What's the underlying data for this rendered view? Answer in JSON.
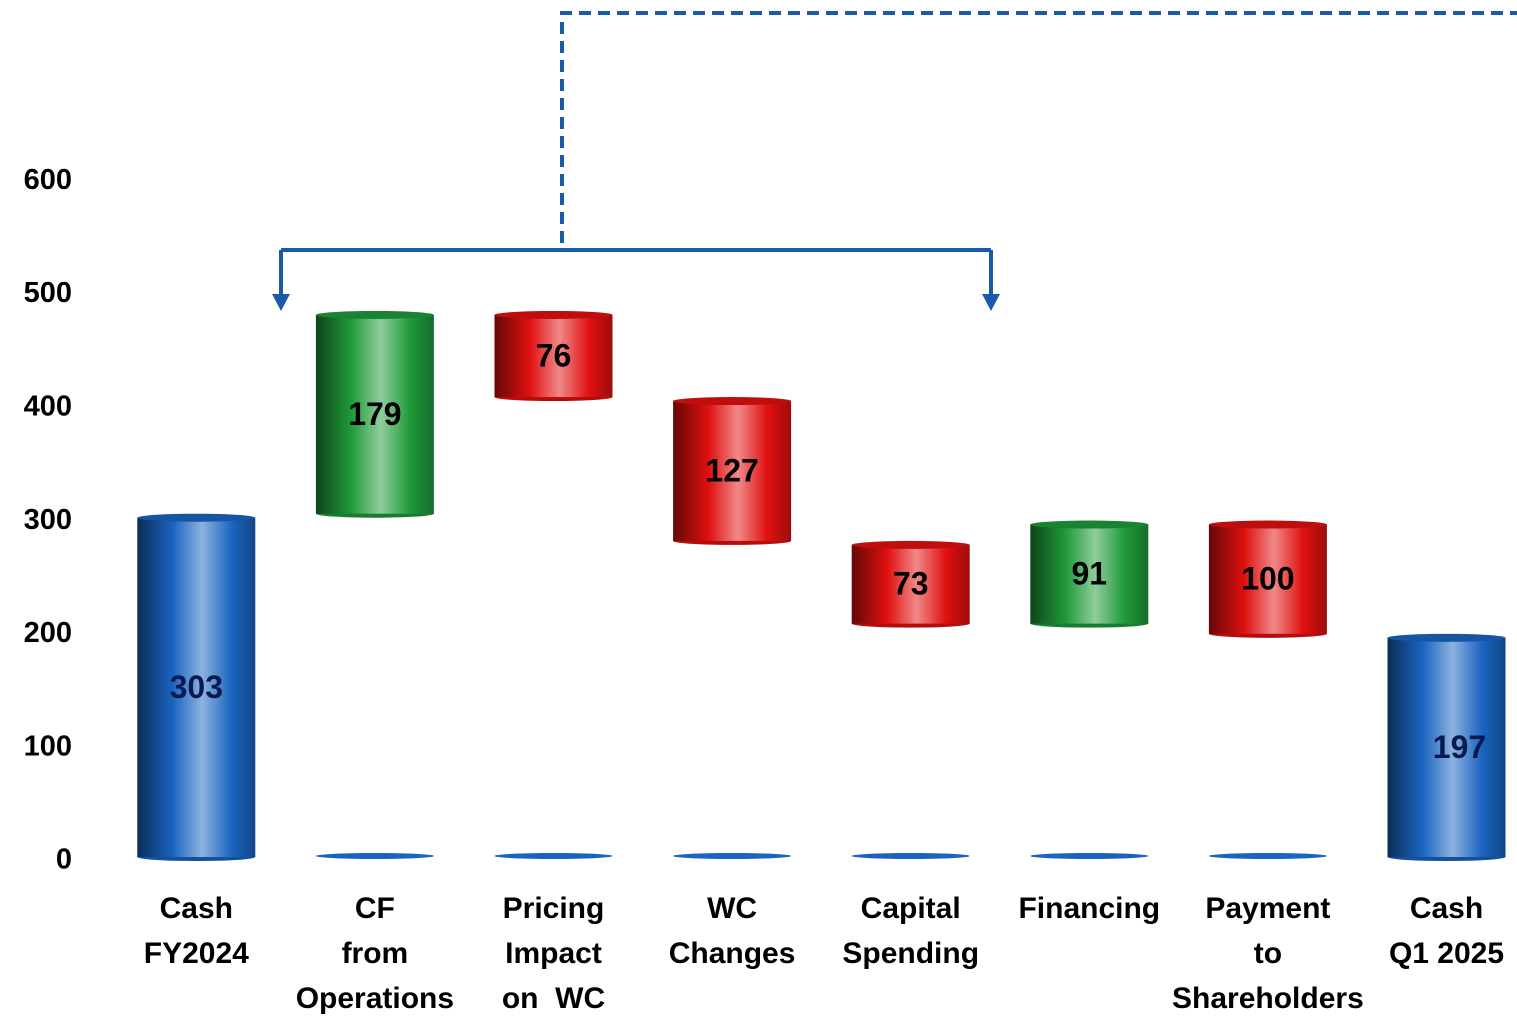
{
  "chart_data": {
    "type": "waterfall",
    "categories": [
      "Cash\nFY2024",
      "CF\nfrom\nOperations",
      "Pricing\nImpact\non  WC",
      "WC\nChanges",
      "Capital\nSpending",
      "Financing",
      "Payment\nto\nShareholders",
      "Cash\nQ1 2025"
    ],
    "measure": [
      "total",
      "relative",
      "relative",
      "relative",
      "relative",
      "relative",
      "relative",
      "total"
    ],
    "values": [
      303,
      179,
      -76,
      -127,
      -73,
      91,
      -100,
      197
    ],
    "value_labels": [
      "303",
      "179",
      "76",
      "127",
      "73",
      "91",
      "100",
      "197"
    ],
    "total_color": "#1a64c0",
    "increase_color": "#1f9a3a",
    "decrease_color": "#e01010",
    "ylim": [
      0,
      760
    ],
    "yticks": [
      0,
      100,
      200,
      300,
      400,
      500,
      600
    ],
    "grid": false
  }
}
